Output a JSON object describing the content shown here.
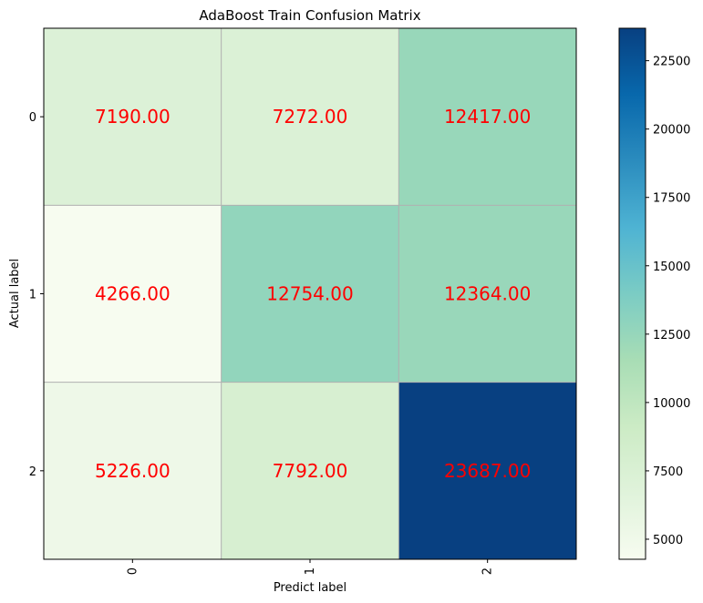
{
  "chart_data": {
    "type": "heatmap",
    "title": "AdaBoost Train Confusion Matrix",
    "xlabel": "Predict label",
    "ylabel": "Actual label",
    "x_categories": [
      "0",
      "1",
      "2"
    ],
    "y_categories": [
      "0",
      "1",
      "2"
    ],
    "values": [
      [
        7190,
        7272,
        12417
      ],
      [
        4266,
        12754,
        12364
      ],
      [
        5226,
        7792,
        23687
      ]
    ],
    "value_labels": [
      [
        "7190.00",
        "7272.00",
        "12417.00"
      ],
      [
        "4266.00",
        "12754.00",
        "12364.00"
      ],
      [
        "5226.00",
        "7792.00",
        "23687.00"
      ]
    ],
    "colormap": "GnBu",
    "value_label_color": "#ff0000",
    "grid": true,
    "colorbar": {
      "range": [
        4266,
        23687
      ],
      "ticks": [
        5000,
        7500,
        10000,
        12500,
        15000,
        17500,
        20000,
        22500
      ],
      "tick_labels": [
        "5000",
        "7500",
        "10000",
        "12500",
        "15000",
        "17500",
        "20000",
        "22500"
      ]
    }
  }
}
